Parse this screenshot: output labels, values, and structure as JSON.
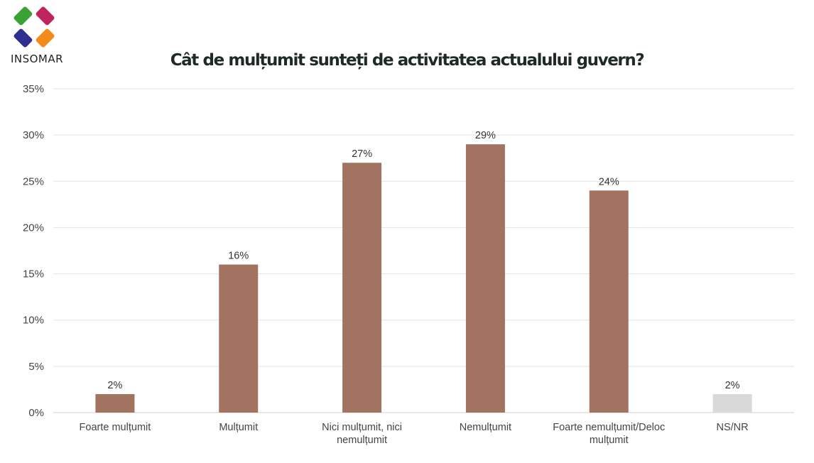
{
  "logo": {
    "text": "INSOMAR"
  },
  "colors": {
    "bar": "#a27360",
    "bar_nsnr": "#d9d9d9",
    "grid": "#e3e3e3"
  },
  "chart_data": {
    "type": "bar",
    "title": "Cât de mulțumit sunteți de activitatea actualului guvern?",
    "categories": [
      "Foarte mulțumit",
      "Mulțumit",
      "Nici mulțumit, nici nemulțumit",
      "Nemulțumit",
      "Foarte nemulțumit/Deloc mulțumit",
      "NS/NR"
    ],
    "category_lines": [
      [
        "Foarte mulțumit"
      ],
      [
        "Mulțumit"
      ],
      [
        "Nici mulțumit, nici",
        "nemulțumit"
      ],
      [
        "Nemulțumit"
      ],
      [
        "Foarte nemulțumit/Deloc",
        "mulțumit"
      ],
      [
        "NS/NR"
      ]
    ],
    "values": [
      2,
      16,
      27,
      29,
      24,
      2
    ],
    "data_labels": [
      "2%",
      "16%",
      "27%",
      "29%",
      "24%",
      "2%"
    ],
    "bar_colors": [
      "#a27360",
      "#a27360",
      "#a27360",
      "#a27360",
      "#a27360",
      "#d9d9d9"
    ],
    "ylim": [
      0,
      35
    ],
    "yticks": [
      0,
      5,
      10,
      15,
      20,
      25,
      30,
      35
    ],
    "ytick_labels": [
      "0%",
      "5%",
      "10%",
      "15%",
      "20%",
      "25%",
      "30%",
      "35%"
    ],
    "xlabel": "",
    "ylabel": "",
    "grid": true,
    "legend": false
  }
}
